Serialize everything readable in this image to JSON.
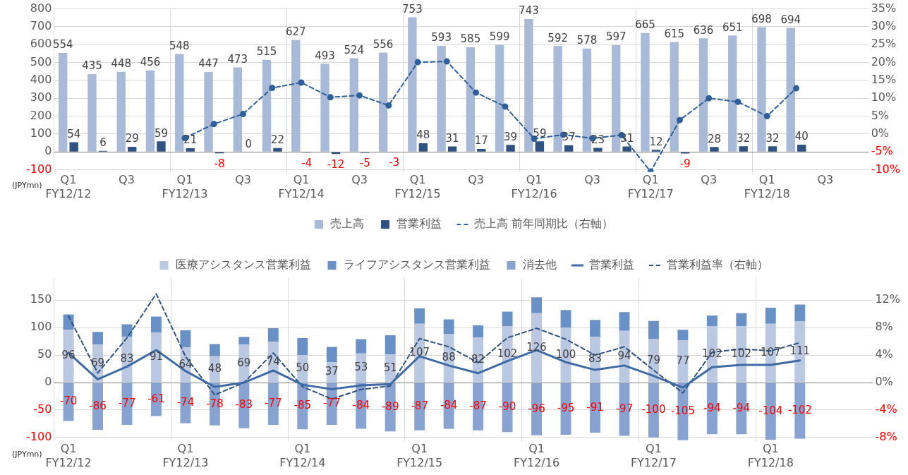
{
  "chart_data": [
    {
      "type": "bar",
      "categories": [
        "Q1\nFY12/12",
        null,
        "Q3",
        null,
        "Q1\nFY12/13",
        null,
        "Q3",
        null,
        "Q1\nFY12/14",
        null,
        "Q3",
        null,
        "Q1\nFY12/15",
        null,
        "Q3",
        null,
        "Q1\nFY12/16",
        null,
        "Q3",
        null,
        "Q1\nFY12/17",
        null,
        "Q3",
        null,
        "Q1\nFY12/18",
        null,
        "Q3",
        null
      ],
      "series": [
        {
          "name": "売上高",
          "type": "bar",
          "color": "#a9b9d8",
          "data_labels": true,
          "values": [
            554,
            435,
            448,
            456,
            548,
            447,
            473,
            515,
            627,
            493,
            524,
            556,
            753,
            593,
            585,
            599,
            743,
            592,
            578,
            597,
            665,
            615,
            636,
            651,
            698,
            694,
            null,
            null
          ]
        },
        {
          "name": "営業利益",
          "type": "bar",
          "color": "#2f5280",
          "data_labels": true,
          "values": [
            54,
            6,
            29,
            59,
            21,
            -8,
            0,
            22,
            -4,
            -12,
            -5,
            -3,
            48,
            31,
            17,
            39,
            59,
            37,
            23,
            31,
            12,
            -9,
            28,
            32,
            32,
            40,
            null,
            null
          ]
        },
        {
          "name": "売上高 前年同期比（右軸）",
          "type": "line",
          "axis": "y2",
          "color": "#2f5f9a",
          "line_style": "dashed",
          "marker": "circle",
          "values": [
            null,
            null,
            null,
            null,
            -1.1,
            2.8,
            5.6,
            12.9,
            14.4,
            10.3,
            10.8,
            8.0,
            20.1,
            20.3,
            11.6,
            7.7,
            -1.3,
            -0.2,
            -1.2,
            -0.3,
            -10.5,
            3.9,
            10.0,
            9.0,
            5.0,
            12.8,
            null,
            null
          ]
        }
      ],
      "ylim": [
        -112,
        800
      ],
      "yticks": [
        -100,
        0,
        100,
        200,
        300,
        400,
        500,
        600,
        700,
        800
      ],
      "y2lim": [
        -10.6,
        35
      ],
      "y2ticks": [
        {
          "value": -10,
          "label": "-10%"
        },
        {
          "value": -5,
          "label": "-5%"
        },
        {
          "value": 0,
          "label": "0%"
        },
        {
          "value": 5,
          "label": "5%"
        },
        {
          "value": 10,
          "label": "10%"
        },
        {
          "value": 15,
          "label": "15%"
        },
        {
          "value": 20,
          "label": "20%"
        },
        {
          "value": 25,
          "label": "25%"
        },
        {
          "value": 30,
          "label": "30%"
        },
        {
          "value": 35,
          "label": "35%"
        }
      ],
      "grid": true,
      "legend": "bottom",
      "annotations": [
        "(JPYmn)"
      ]
    },
    {
      "type": "bar",
      "stacked": true,
      "categories": [
        "Q1\nFY12/12",
        null,
        null,
        null,
        "Q1\nFY12/13",
        null,
        null,
        null,
        "Q1\nFY12/14",
        null,
        null,
        null,
        "Q1\nFY12/15",
        null,
        null,
        null,
        "Q1\nFY12/16",
        null,
        null,
        null,
        "Q1\nFY12/17",
        null,
        null,
        null,
        "Q1\nFY12/18",
        null,
        null,
        null
      ],
      "series": [
        {
          "name": "医療アシスタンス営業利益",
          "type": "bar",
          "color": "#bac8e2",
          "data_labels": true,
          "values": [
            96,
            69,
            83,
            91,
            64,
            48,
            69,
            74,
            50,
            37,
            53,
            51,
            107,
            88,
            82,
            102,
            126,
            100,
            83,
            94,
            79,
            77,
            102,
            102,
            107,
            111,
            null,
            null
          ]
        },
        {
          "name": "ライフアシスタンス営業利益",
          "type": "bar",
          "color": "#6a91c6",
          "values": [
            28,
            23,
            23,
            29,
            31,
            22,
            14,
            25,
            31,
            28,
            26,
            35,
            28,
            27,
            22,
            27,
            29,
            32,
            31,
            34,
            33,
            19,
            20,
            24,
            29,
            31,
            null,
            null
          ]
        },
        {
          "name": "消去他",
          "type": "bar",
          "color": "#88a3cf",
          "data_labels": true,
          "values": [
            -70,
            -86,
            -77,
            -61,
            -74,
            -78,
            -83,
            -77,
            -85,
            -77,
            -84,
            -89,
            -87,
            -84,
            -87,
            -90,
            -96,
            -95,
            -91,
            -97,
            -100,
            -105,
            -94,
            -94,
            -104,
            -102,
            null,
            null
          ]
        },
        {
          "name": "営業利益",
          "type": "line",
          "color": "#3e6aa5",
          "line_style": "solid",
          "values": [
            54,
            6,
            29,
            59,
            21,
            -8,
            0,
            22,
            -4,
            -12,
            -5,
            -3,
            48,
            31,
            17,
            39,
            59,
            37,
            23,
            31,
            12,
            -9,
            28,
            32,
            32,
            40,
            null,
            null
          ]
        },
        {
          "name": "営業利益率（右軸）",
          "type": "line",
          "axis": "y2",
          "color": "#2f5280",
          "line_style": "dashed",
          "values": [
            9.7,
            1.4,
            6.5,
            12.9,
            3.8,
            -1.8,
            0,
            4.3,
            -0.6,
            -2.4,
            -1.0,
            -0.5,
            6.4,
            5.2,
            2.9,
            6.5,
            7.9,
            6.3,
            4.0,
            5.2,
            1.8,
            -1.5,
            4.4,
            4.9,
            4.6,
            5.8,
            null,
            null
          ]
        }
      ],
      "ylim": [
        -106,
        190
      ],
      "yticks": [
        -100,
        -50,
        0,
        50,
        100,
        150
      ],
      "y2lim": [
        -8.48,
        15.2
      ],
      "y2ticks": [
        {
          "value": -8,
          "label": "-8%"
        },
        {
          "value": -4,
          "label": "-4%"
        },
        {
          "value": 0,
          "label": "0%"
        },
        {
          "value": 4,
          "label": "4%"
        },
        {
          "value": 8,
          "label": "8%"
        },
        {
          "value": 12,
          "label": "12%"
        }
      ],
      "grid": true,
      "legend": "top",
      "annotations": [
        "(JPYmn)"
      ]
    }
  ]
}
